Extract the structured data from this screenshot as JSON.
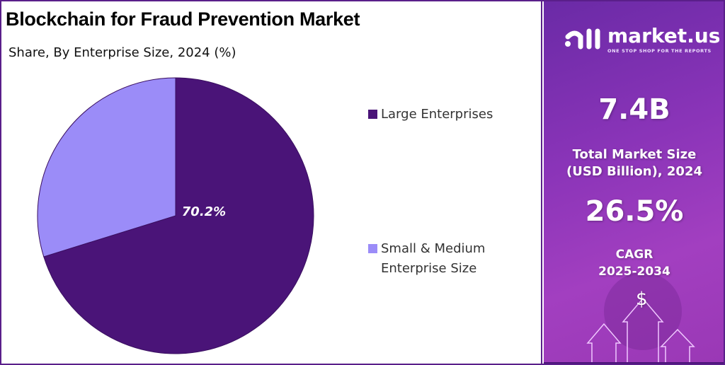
{
  "title": "Blockchain for Fraud Prevention Market",
  "subtitle": "Share, By Enterprise Size, 2024 (%)",
  "chart_data": {
    "type": "pie",
    "categories": [
      "Large Enterprises",
      "Small & Medium Enterprise Size"
    ],
    "values": [
      70.2,
      29.8
    ],
    "data_labels": [
      "70.2%",
      ""
    ],
    "colors": [
      "#4a1478",
      "#9b8cf8"
    ],
    "legend_position": "right",
    "start_angle": "12 o'clock, clockwise"
  },
  "legend": {
    "items": [
      {
        "label": "Large Enterprises"
      },
      {
        "label_line1": "Small & Medium",
        "label_line2": "Enterprise Size"
      }
    ]
  },
  "panel": {
    "brand": "market.us",
    "tagline": "ONE STOP SHOP FOR THE REPORTS",
    "market_size": "7.4B",
    "market_size_label_1": "Total Market Size",
    "market_size_label_2": "(USD Billion), 2024",
    "cagr": "26.5%",
    "cagr_label_1": "CAGR",
    "cagr_label_2": "2025-2034",
    "currency_symbol": "$"
  }
}
